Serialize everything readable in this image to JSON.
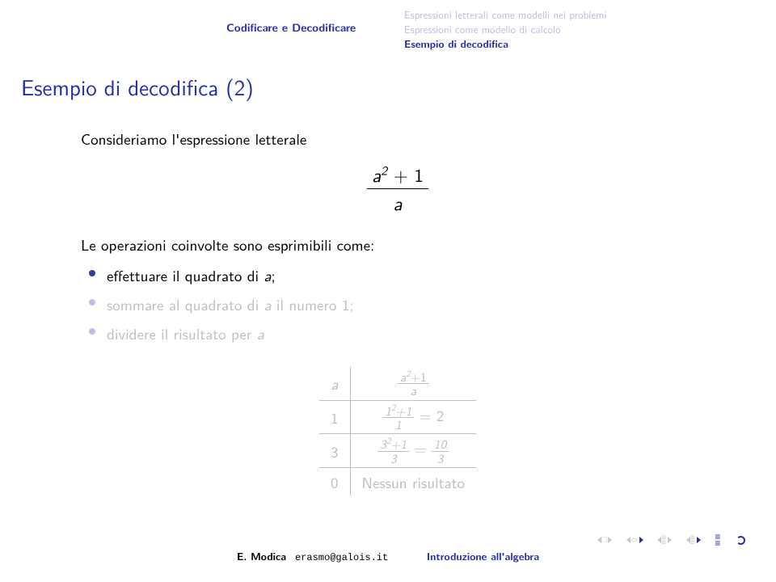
{
  "colors": {
    "title_blue": "#2530a8",
    "dim_purple": "#bfbce6",
    "bullet_active": "#2d3da6",
    "bullet_dim": "#bfbce6",
    "dim_text": "#bfbfc2",
    "black": "#000000",
    "nav_gray": "#c8c8c8",
    "nav_accent": "#2530a8"
  },
  "header": {
    "left": "Codificare e Decodificare",
    "right_dim1": "Espressioni letterali come modelli nei problemi",
    "right_dim2": "Espressioni come modello di calcolo",
    "right_active": "Esempio di decodifica"
  },
  "title": "Esempio di decodifica (2)",
  "intro": "Consideriamo l'espressione letterale",
  "formula": {
    "num_var": "a",
    "num_exp": "2",
    "num_plus": " + 1",
    "den": "a"
  },
  "ops_intro": "Le operazioni coinvolte sono esprimibili come:",
  "bullets": [
    {
      "text_before": "effettuare il quadrato di ",
      "text_ital": "a",
      "text_after": ";",
      "dim": false
    },
    {
      "text_before": "sommare al quadrato di ",
      "text_ital": "a",
      "text_after": " il numero 1;",
      "dim": true
    },
    {
      "text_before": "dividere il risultato per ",
      "text_ital": "a",
      "text_after": "",
      "dim": true
    }
  ],
  "table": {
    "dim": true,
    "head_a": "a",
    "head_expr_num": "a",
    "head_expr_exp": "2",
    "head_expr_plus": "+1",
    "head_expr_den": "a",
    "rows": [
      {
        "a": "1",
        "num_lhs": "1",
        "exp": "2",
        "plus": "+1",
        "den": "1",
        "eq": " = 2"
      },
      {
        "a": "3",
        "num_lhs": "3",
        "exp": "2",
        "plus": "+1",
        "den": "3",
        "eq_frac_num": "10",
        "eq_frac_den": "3"
      }
    ],
    "last_a": "0",
    "last_text": "Nessun risultato"
  },
  "footer": {
    "author": "E. Modica",
    "email": "erasmo@galois.it",
    "talk": "Introduzione all'algebra"
  }
}
